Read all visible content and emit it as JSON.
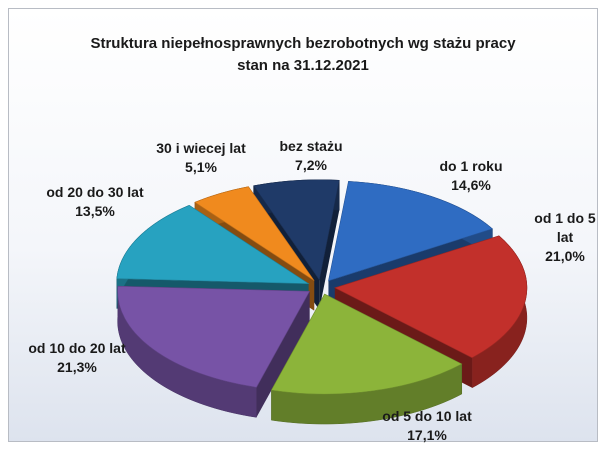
{
  "chart_data": {
    "type": "pie",
    "title": "Struktura niepełnosprawnych bezrobotnych wg  stażu pracy",
    "subtitle": "stan na 31.12.2021",
    "categories": [
      "bez stażu",
      "do 1 roku",
      "od 1 do 5 lat",
      "od 5 do 10 lat",
      "od 10 do 20 lat",
      "od 20 do 30 lat",
      "30 i wiecej lat"
    ],
    "values": [
      7.2,
      14.6,
      21.0,
      17.1,
      21.3,
      13.5,
      5.1
    ],
    "value_labels": [
      "7,2%",
      "14,6%",
      "21,0%",
      "17,1%",
      "21,3%",
      "13,5%",
      "5,1%"
    ],
    "colors": [
      "#1f3a68",
      "#2f6cc2",
      "#c2302b",
      "#8cb43a",
      "#7753a6",
      "#27a2c0",
      "#f08a1e"
    ]
  }
}
